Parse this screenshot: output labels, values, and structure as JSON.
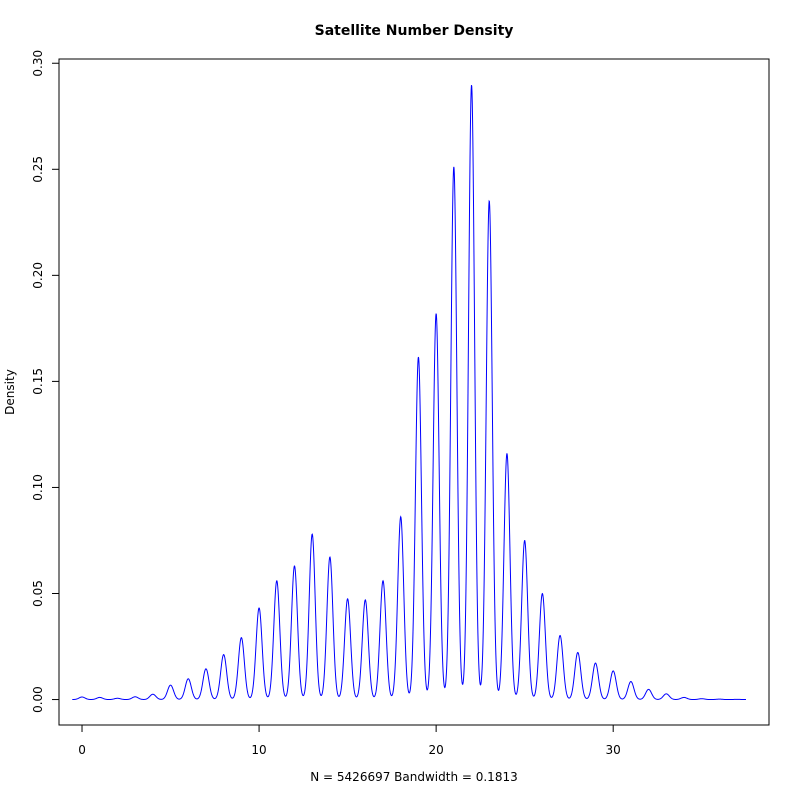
{
  "chart_data": {
    "type": "line",
    "title": "Satellite Number Density",
    "xlabel": "N = 5426697   Bandwidth = 0.1813",
    "ylabel": "Density",
    "xlim": [
      -1.3,
      38.8
    ],
    "ylim": [
      -0.012,
      0.302
    ],
    "x_ticks": [
      0,
      10,
      20,
      30
    ],
    "x_tick_labels": [
      "0",
      "10",
      "20",
      "30"
    ],
    "y_ticks": [
      0.0,
      0.05,
      0.1,
      0.15,
      0.2,
      0.25,
      0.3
    ],
    "y_tick_labels": [
      "0.00",
      "0.05",
      "0.10",
      "0.15",
      "0.20",
      "0.25",
      "0.30"
    ],
    "line_color": "#0000ff",
    "bandwidth": 0.1813,
    "x_range": [
      -0.55,
      37.5
    ],
    "grid": false,
    "legend": "none",
    "series": [
      {
        "peaks": [
          {
            "x": 0,
            "y": 0.0012
          },
          {
            "x": 1,
            "y": 0.001
          },
          {
            "x": 2,
            "y": 0.0006
          },
          {
            "x": 3,
            "y": 0.0013
          },
          {
            "x": 4,
            "y": 0.0025
          },
          {
            "x": 5,
            "y": 0.0068
          },
          {
            "x": 6,
            "y": 0.0098
          },
          {
            "x": 7,
            "y": 0.0145
          },
          {
            "x": 8,
            "y": 0.0212
          },
          {
            "x": 9,
            "y": 0.0292
          },
          {
            "x": 10,
            "y": 0.0432
          },
          {
            "x": 11,
            "y": 0.056
          },
          {
            "x": 12,
            "y": 0.063
          },
          {
            "x": 13,
            "y": 0.078
          },
          {
            "x": 14,
            "y": 0.0672
          },
          {
            "x": 15,
            "y": 0.0475
          },
          {
            "x": 16,
            "y": 0.047
          },
          {
            "x": 17,
            "y": 0.056
          },
          {
            "x": 18,
            "y": 0.0862
          },
          {
            "x": 19,
            "y": 0.1615
          },
          {
            "x": 20,
            "y": 0.182
          },
          {
            "x": 21,
            "y": 0.2512
          },
          {
            "x": 22,
            "y": 0.2898
          },
          {
            "x": 23,
            "y": 0.2352
          },
          {
            "x": 24,
            "y": 0.116
          },
          {
            "x": 25,
            "y": 0.075
          },
          {
            "x": 26,
            "y": 0.05
          },
          {
            "x": 27,
            "y": 0.0302
          },
          {
            "x": 28,
            "y": 0.0222
          },
          {
            "x": 29,
            "y": 0.0172
          },
          {
            "x": 30,
            "y": 0.0135
          },
          {
            "x": 31,
            "y": 0.0085
          },
          {
            "x": 32,
            "y": 0.0048
          },
          {
            "x": 33,
            "y": 0.0027
          },
          {
            "x": 34,
            "y": 0.001
          },
          {
            "x": 35,
            "y": 0.0004
          },
          {
            "x": 36,
            "y": 0.0002
          },
          {
            "x": 37,
            "y": 0.0001
          }
        ]
      }
    ]
  }
}
